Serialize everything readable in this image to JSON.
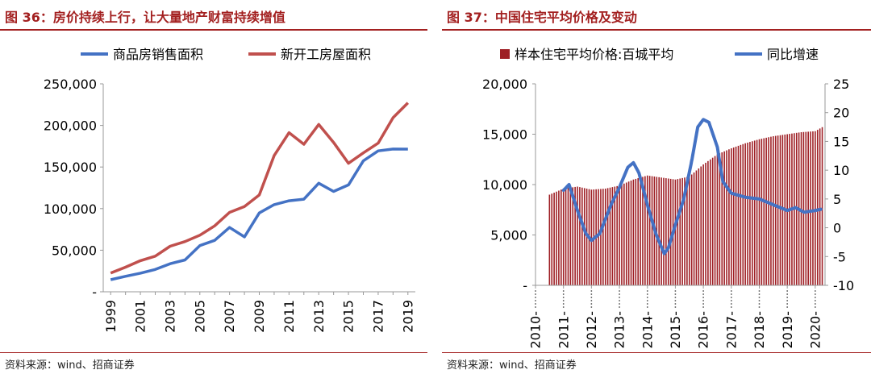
{
  "left": {
    "title": "图 36：房价持续上行，让大量地产财富持续增值",
    "source": "资料来源：wind、招商证券",
    "legend": [
      "商品房销售面积",
      "新开工房屋面积"
    ]
  },
  "right": {
    "title": "图 37：中国住宅平均价格及变动",
    "source": "资料来源：wind、招商证券",
    "legend": [
      "样本住宅平均价格:百城平均",
      "同比增速"
    ]
  },
  "colors": {
    "blue": "#4472c4",
    "red": "#c0504d",
    "bar": "#9e1e24",
    "accent": "#a32020"
  },
  "chart_data": [
    {
      "type": "line",
      "x": [
        1999,
        2000,
        2001,
        2002,
        2003,
        2004,
        2005,
        2006,
        2007,
        2008,
        2009,
        2010,
        2011,
        2012,
        2013,
        2014,
        2015,
        2016,
        2017,
        2018,
        2019
      ],
      "xticks": [
        "1999",
        "2001",
        "2003",
        "2005",
        "2007",
        "2009",
        "2011",
        "2013",
        "2015",
        "2017",
        "2019"
      ],
      "ylim": [
        0,
        250000
      ],
      "yticks": [
        "-",
        "50,000",
        "100,000",
        "150,000",
        "200,000",
        "250,000"
      ],
      "series": [
        {
          "name": "商品房销售面积",
          "values": [
            14557,
            18637,
            22412,
            26808,
            33718,
            38232,
            55486,
            61857,
            77355,
            65970,
            94755,
            104765,
            109366,
            111304,
            130551,
            120649,
            128495,
            157349,
            169408,
            171654,
            171558
          ]
        },
        {
          "name": "新开工房屋面积",
          "values": [
            22579,
            29583,
            37394,
            42801,
            54708,
            60414,
            68064,
            79253,
            95402,
            102553,
            116422,
            163647,
            191237,
            177334,
            201208,
            179592,
            154454,
            166928,
            178654,
            209342,
            227154
          ]
        }
      ]
    },
    {
      "type": "bar+line",
      "xticks": [
        "2010-",
        "2011-",
        "2012-",
        "2013-",
        "2014-",
        "2015-",
        "2016-",
        "2017-",
        "2018-",
        "2019-",
        "2020-"
      ],
      "ylim": [
        0,
        20000
      ],
      "yticks": [
        "-",
        "5,000",
        "10,000",
        "15,000",
        "20,000"
      ],
      "y2lim": [
        -10,
        25
      ],
      "y2ticks": [
        "-10",
        "-5",
        "0",
        "5",
        "10",
        "15",
        "20",
        "25"
      ],
      "bar_series": {
        "name": "样本住宅平均价格:百城平均",
        "knots": [
          [
            2010.5,
            9000
          ],
          [
            2011.0,
            9600
          ],
          [
            2011.5,
            9800
          ],
          [
            2012.0,
            9500
          ],
          [
            2012.5,
            9600
          ],
          [
            2013.0,
            9900
          ],
          [
            2013.5,
            10500
          ],
          [
            2014.0,
            10900
          ],
          [
            2014.5,
            10700
          ],
          [
            2015.0,
            10500
          ],
          [
            2015.5,
            10800
          ],
          [
            2016.0,
            12000
          ],
          [
            2016.5,
            13000
          ],
          [
            2017.0,
            13600
          ],
          [
            2017.5,
            14100
          ],
          [
            2018.0,
            14500
          ],
          [
            2018.5,
            14800
          ],
          [
            2019.0,
            15000
          ],
          [
            2019.5,
            15200
          ],
          [
            2020.0,
            15300
          ],
          [
            2020.25,
            15700
          ]
        ]
      },
      "line_series": {
        "name": "同比增速",
        "knots": [
          [
            2011.0,
            6.5
          ],
          [
            2011.2,
            7.5
          ],
          [
            2011.5,
            3.0
          ],
          [
            2011.8,
            -1.0
          ],
          [
            2012.0,
            -2.2
          ],
          [
            2012.3,
            -1.0
          ],
          [
            2012.7,
            4.0
          ],
          [
            2013.0,
            7.0
          ],
          [
            2013.3,
            10.5
          ],
          [
            2013.5,
            11.3
          ],
          [
            2013.7,
            9.5
          ],
          [
            2014.0,
            4.0
          ],
          [
            2014.3,
            -1.0
          ],
          [
            2014.6,
            -4.5
          ],
          [
            2014.75,
            -3.5
          ],
          [
            2015.0,
            0.5
          ],
          [
            2015.3,
            5.0
          ],
          [
            2015.6,
            12.0
          ],
          [
            2015.8,
            17.5
          ],
          [
            2016.0,
            18.8
          ],
          [
            2016.2,
            18.3
          ],
          [
            2016.5,
            14.0
          ],
          [
            2016.7,
            8.0
          ],
          [
            2017.0,
            6.0
          ],
          [
            2017.5,
            5.3
          ],
          [
            2018.0,
            5.0
          ],
          [
            2018.5,
            4.0
          ],
          [
            2019.0,
            3.0
          ],
          [
            2019.3,
            3.5
          ],
          [
            2019.6,
            2.7
          ],
          [
            2020.0,
            3.0
          ],
          [
            2020.2,
            3.2
          ]
        ]
      }
    }
  ]
}
